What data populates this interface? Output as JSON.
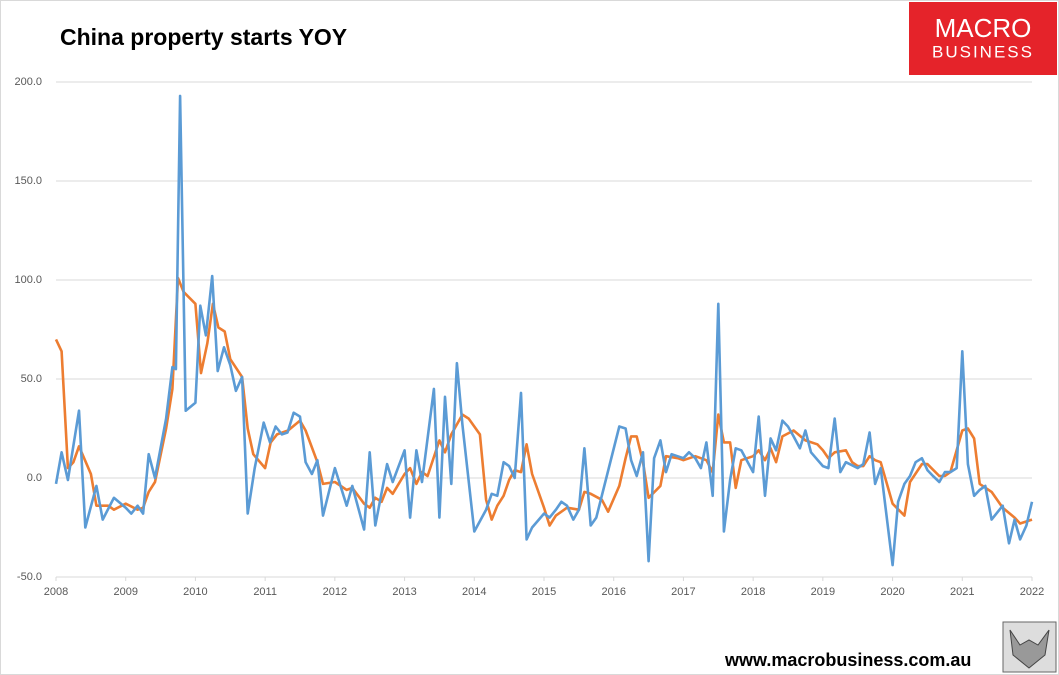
{
  "chart_data": {
    "type": "line",
    "title": "China property starts YOY",
    "logo": [
      "MACRO",
      "BUSINESS"
    ],
    "footer": "www.macrobusiness.com.au",
    "xlim": [
      2008,
      2022
    ],
    "xticks": [
      2008,
      2009,
      2010,
      2011,
      2012,
      2013,
      2014,
      2015,
      2016,
      2017,
      2018,
      2019,
      2020,
      2021,
      2022
    ],
    "ylim": [
      -50,
      200
    ],
    "yticks": [
      {
        "value": -50,
        "label": "-50.0"
      },
      {
        "value": 0,
        "label": "0.0"
      },
      {
        "value": 50,
        "label": "50.0"
      },
      {
        "value": 100,
        "label": "100.0"
      },
      {
        "value": 150,
        "label": "150.0"
      },
      {
        "value": 200,
        "label": "200.0"
      }
    ],
    "grid": true,
    "series": [
      {
        "color": "#ed7d31",
        "x": [
          2008,
          2008.08,
          2008.17,
          2008.25,
          2008.33,
          2008.5,
          2008.58,
          2008.75,
          2008.83,
          2009,
          2009.17,
          2009.25,
          2009.33,
          2009.42,
          2009.58,
          2009.67,
          2009.75,
          2009.83,
          2010,
          2010.08,
          2010.17,
          2010.25,
          2010.33,
          2010.42,
          2010.5,
          2010.67,
          2010.75,
          2010.83,
          2011,
          2011.08,
          2011.17,
          2011.33,
          2011.5,
          2011.58,
          2011.75,
          2011.83,
          2012,
          2012.17,
          2012.25,
          2012.42,
          2012.5,
          2012.58,
          2012.67,
          2012.75,
          2012.83,
          2013,
          2013.08,
          2013.17,
          2013.25,
          2013.33,
          2013.5,
          2013.58,
          2013.67,
          2013.83,
          2013.92,
          2014,
          2014.08,
          2014.17,
          2014.25,
          2014.33,
          2014.42,
          2014.5,
          2014.58,
          2014.67,
          2014.75,
          2014.83,
          2015,
          2015.08,
          2015.17,
          2015.33,
          2015.5,
          2015.58,
          2015.67,
          2015.83,
          2015.92,
          2016.08,
          2016.17,
          2016.25,
          2016.33,
          2016.42,
          2016.5,
          2016.67,
          2016.75,
          2016.92,
          2017,
          2017.17,
          2017.33,
          2017.42,
          2017.5,
          2017.58,
          2017.67,
          2017.75,
          2017.83,
          2018,
          2018.08,
          2018.17,
          2018.25,
          2018.33,
          2018.42,
          2018.58,
          2018.75,
          2018.92,
          2019,
          2019.08,
          2019.17,
          2019.33,
          2019.42,
          2019.5,
          2019.58,
          2019.67,
          2019.75,
          2019.83,
          2020,
          2020.17,
          2020.25,
          2020.42,
          2020.5,
          2020.67,
          2020.75,
          2020.83,
          2021,
          2021.08,
          2021.17,
          2021.25,
          2021.42,
          2021.58,
          2021.75,
          2021.83,
          2022
        ],
        "values": [
          70,
          64,
          5,
          8,
          16,
          2,
          -14,
          -14,
          -16,
          -13,
          -16,
          -15,
          -7,
          -2,
          25,
          45,
          101,
          94,
          88,
          53,
          68,
          88,
          76,
          74,
          60,
          51,
          25,
          12,
          5,
          18,
          22,
          24,
          29,
          24,
          8,
          -3,
          -2,
          -6,
          -5,
          -13,
          -15,
          -10,
          -12,
          -5,
          -8,
          2,
          5,
          -3,
          3,
          1,
          19,
          13,
          22,
          32,
          30,
          26,
          22,
          -11,
          -21,
          -14,
          -9,
          -1,
          4,
          3,
          17,
          2,
          -15,
          -24,
          -19,
          -15,
          -16,
          -7,
          -8,
          -11,
          -17,
          -4,
          10,
          21,
          21,
          8,
          -10,
          -4,
          11,
          10,
          9,
          11,
          9,
          3,
          32,
          18,
          18,
          -5,
          9,
          11,
          14,
          9,
          15,
          8,
          21,
          24,
          19,
          17,
          14,
          10,
          13,
          14,
          8,
          6,
          6,
          11,
          9,
          8,
          -13,
          -19,
          -2,
          7,
          7,
          1,
          1,
          3,
          24,
          25,
          20,
          -3,
          -7,
          -15,
          -20,
          -23,
          -21
        ]
      },
      {
        "color": "#5b9bd5",
        "x": [
          2008,
          2008.08,
          2008.17,
          2008.33,
          2008.42,
          2008.58,
          2008.67,
          2008.83,
          2009,
          2009.08,
          2009.17,
          2009.25,
          2009.33,
          2009.42,
          2009.58,
          2009.67,
          2009.72,
          2009.78,
          2009.86,
          2010,
          2010.07,
          2010.15,
          2010.24,
          2010.32,
          2010.41,
          2010.5,
          2010.58,
          2010.67,
          2010.75,
          2010.85,
          2010.98,
          2011.07,
          2011.15,
          2011.24,
          2011.32,
          2011.41,
          2011.5,
          2011.58,
          2011.67,
          2011.75,
          2011.83,
          2012,
          2012.17,
          2012.25,
          2012.42,
          2012.5,
          2012.58,
          2012.75,
          2012.83,
          2013,
          2013.08,
          2013.17,
          2013.25,
          2013.42,
          2013.5,
          2013.58,
          2013.67,
          2013.75,
          2013.83,
          2014,
          2014.17,
          2014.25,
          2014.33,
          2014.42,
          2014.5,
          2014.58,
          2014.67,
          2014.75,
          2014.83,
          2015,
          2015.08,
          2015.17,
          2015.25,
          2015.33,
          2015.42,
          2015.5,
          2015.58,
          2015.67,
          2015.75,
          2016.08,
          2016.17,
          2016.25,
          2016.33,
          2016.42,
          2016.5,
          2016.58,
          2016.67,
          2016.75,
          2016.83,
          2017,
          2017.08,
          2017.17,
          2017.25,
          2017.33,
          2017.42,
          2017.5,
          2017.58,
          2017.67,
          2017.75,
          2017.83,
          2018,
          2018.08,
          2018.17,
          2018.25,
          2018.33,
          2018.42,
          2018.5,
          2018.58,
          2018.67,
          2018.75,
          2018.83,
          2019,
          2019.08,
          2019.17,
          2019.25,
          2019.33,
          2019.5,
          2019.58,
          2019.67,
          2019.75,
          2019.83,
          2020,
          2020.08,
          2020.17,
          2020.25,
          2020.33,
          2020.42,
          2020.5,
          2020.58,
          2020.67,
          2020.75,
          2020.83,
          2020.92,
          2021,
          2021.08,
          2021.17,
          2021.25,
          2021.33,
          2021.42,
          2021.58,
          2021.67,
          2021.75,
          2021.83,
          2021.92,
          2022
        ],
        "values": [
          -3,
          13,
          -1,
          34,
          -25,
          -4,
          -21,
          -10,
          -15,
          -18,
          -14,
          -18,
          12,
          0,
          30,
          56,
          55,
          193,
          34,
          38,
          87,
          72,
          102,
          54,
          66,
          57,
          44,
          51,
          -18,
          5,
          28,
          18,
          26,
          22,
          23,
          33,
          31,
          8,
          2,
          9,
          -19,
          5,
          -14,
          -4,
          -26,
          13,
          -24,
          7,
          -2,
          14,
          -20,
          14,
          -2,
          45,
          -20,
          41,
          -3,
          58,
          27,
          -27,
          -16,
          -8,
          -9,
          8,
          6,
          0,
          43,
          -31,
          -25,
          -18,
          -20,
          -16,
          -12,
          -14,
          -21,
          -16,
          15,
          -24,
          -20,
          26,
          25,
          9,
          1,
          13,
          -42,
          10,
          19,
          3,
          12,
          10,
          13,
          10,
          5,
          18,
          -9,
          88,
          -27,
          -1,
          15,
          14,
          3,
          31,
          -9,
          20,
          14,
          29,
          26,
          21,
          15,
          24,
          13,
          6,
          5,
          30,
          3,
          8,
          5,
          7,
          23,
          -3,
          5,
          -44,
          -12,
          -3,
          1,
          8,
          10,
          4,
          1,
          -2,
          3,
          3,
          5,
          64,
          7,
          -9,
          -6,
          -4,
          -21,
          -14,
          -33,
          -21,
          -31,
          -24,
          -12
        ]
      }
    ]
  }
}
